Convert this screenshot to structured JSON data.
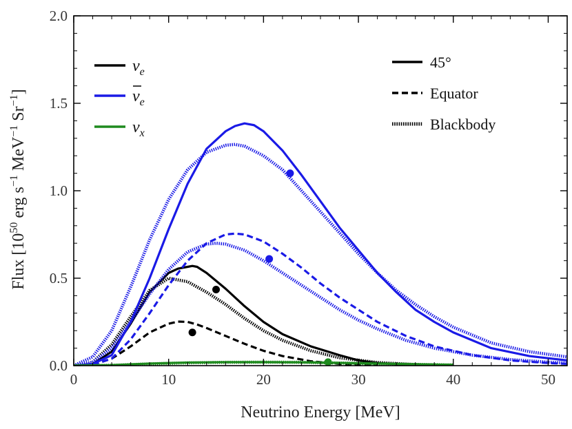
{
  "chart_data": {
    "type": "line",
    "xlabel": "Neutrino Energy [MeV]",
    "ylabel": "Flux [10^50 erg s^-1 MeV^-1 Sr^-1]",
    "ylabel_parts": {
      "a": "Flux [10",
      "b": "50",
      "c": " erg s",
      "d": "−1",
      "e": " MeV",
      "f": "−1",
      "g": " Sr",
      "h": "−1",
      "i": "]"
    },
    "xlim": [
      0,
      52
    ],
    "ylim": [
      0,
      2.0
    ],
    "xticks": [
      0,
      10,
      20,
      30,
      40,
      50
    ],
    "xtick_labels": [
      "0",
      "10",
      "20",
      "30",
      "40",
      "50"
    ],
    "yticks": [
      0,
      0.5,
      1.0,
      1.5,
      2.0
    ],
    "ytick_labels": [
      "0.0",
      "0.5",
      "1.0",
      "1.5",
      "2.0"
    ],
    "colors": {
      "nu_e": "#000000",
      "nubar_e": "#1a1ae6",
      "nu_x": "#1e8a1e"
    },
    "legend_species": [
      {
        "key": "nu_e",
        "sym": "ν",
        "sub": "e",
        "bar": false,
        "color": "#000000"
      },
      {
        "key": "nubar_e",
        "sym": "ν",
        "sub": "e",
        "bar": true,
        "color": "#1a1ae6"
      },
      {
        "key": "nu_x",
        "sym": "ν",
        "sub": "x",
        "bar": false,
        "color": "#1e8a1e"
      }
    ],
    "legend_styles": [
      {
        "style": "solid",
        "label": "45°"
      },
      {
        "style": "dashed",
        "label": "Equator"
      },
      {
        "style": "dotted",
        "label": "Blackbody"
      }
    ],
    "series": [
      {
        "name": "nu_e 45°",
        "species": "nu_e",
        "style": "solid",
        "x": [
          0,
          2,
          4,
          6,
          8,
          10,
          11,
          12,
          12.5,
          13,
          14,
          16,
          18,
          20,
          22,
          25,
          28,
          30,
          32,
          35,
          38
        ],
        "y": [
          0,
          0.01,
          0.08,
          0.24,
          0.42,
          0.53,
          0.555,
          0.565,
          0.57,
          0.565,
          0.53,
          0.44,
          0.34,
          0.25,
          0.18,
          0.11,
          0.06,
          0.03,
          0.015,
          0.005,
          0
        ]
      },
      {
        "name": "nu_e Equator",
        "species": "nu_e",
        "style": "dashed",
        "x": [
          0,
          2,
          4,
          6,
          8,
          10,
          11,
          12,
          13,
          14,
          16,
          18,
          20,
          22,
          25,
          28,
          32
        ],
        "y": [
          0,
          0.005,
          0.04,
          0.11,
          0.19,
          0.24,
          0.252,
          0.25,
          0.235,
          0.215,
          0.17,
          0.125,
          0.085,
          0.055,
          0.025,
          0.01,
          0
        ]
      },
      {
        "name": "nu_e Blackbody",
        "species": "nu_e",
        "style": "dotted",
        "x": [
          0,
          2,
          4,
          6,
          8,
          10,
          12,
          14,
          16,
          18,
          20,
          22,
          25,
          28,
          32,
          36,
          40
        ],
        "y": [
          0,
          0.02,
          0.12,
          0.28,
          0.43,
          0.5,
          0.48,
          0.42,
          0.35,
          0.27,
          0.2,
          0.145,
          0.085,
          0.045,
          0.018,
          0.006,
          0
        ]
      },
      {
        "name": "nubar_e 45°",
        "species": "nubar_e",
        "style": "solid",
        "x": [
          0,
          2,
          4,
          6,
          8,
          10,
          12,
          14,
          16,
          17,
          18,
          19,
          20,
          22,
          24,
          26,
          28,
          30,
          32,
          34,
          36,
          38,
          40,
          44,
          48,
          52
        ],
        "y": [
          0,
          0.01,
          0.06,
          0.25,
          0.5,
          0.78,
          1.04,
          1.24,
          1.34,
          1.37,
          1.385,
          1.375,
          1.34,
          1.23,
          1.09,
          0.94,
          0.79,
          0.66,
          0.53,
          0.42,
          0.32,
          0.25,
          0.19,
          0.1,
          0.055,
          0.03
        ]
      },
      {
        "name": "nubar_e Equator",
        "species": "nubar_e",
        "style": "dashed",
        "x": [
          0,
          2,
          4,
          6,
          8,
          10,
          12,
          14,
          16,
          17,
          18,
          20,
          22,
          24,
          26,
          28,
          30,
          32,
          35,
          38,
          42,
          46,
          50,
          52
        ],
        "y": [
          0,
          0.005,
          0.04,
          0.15,
          0.3,
          0.46,
          0.6,
          0.7,
          0.75,
          0.755,
          0.75,
          0.71,
          0.64,
          0.56,
          0.47,
          0.39,
          0.32,
          0.25,
          0.17,
          0.11,
          0.06,
          0.03,
          0.015,
          0.01
        ]
      },
      {
        "name": "nubar_e Blackbody",
        "species": "nubar_e",
        "style": "dotted",
        "x": [
          0,
          2,
          4,
          6,
          8,
          10,
          12,
          14,
          15,
          16,
          18,
          20,
          22,
          24,
          26,
          28,
          30,
          32,
          35,
          38,
          42,
          46,
          50,
          52
        ],
        "y": [
          0,
          0.02,
          0.1,
          0.25,
          0.41,
          0.55,
          0.65,
          0.695,
          0.7,
          0.695,
          0.66,
          0.6,
          0.53,
          0.46,
          0.39,
          0.32,
          0.26,
          0.21,
          0.145,
          0.1,
          0.06,
          0.035,
          0.02,
          0.015
        ]
      },
      {
        "name": "nubar_e Blackbody (45°)",
        "species": "nubar_e",
        "style": "dotted",
        "x": [
          0,
          2,
          4,
          6,
          8,
          10,
          12,
          14,
          16,
          17,
          18,
          20,
          22,
          24,
          26,
          28,
          30,
          32,
          34,
          36,
          38,
          40,
          44,
          48,
          52
        ],
        "y": [
          0,
          0.05,
          0.2,
          0.45,
          0.72,
          0.95,
          1.12,
          1.22,
          1.26,
          1.265,
          1.255,
          1.2,
          1.12,
          1.0,
          0.88,
          0.76,
          0.64,
          0.53,
          0.43,
          0.35,
          0.28,
          0.22,
          0.13,
          0.08,
          0.05
        ]
      },
      {
        "name": "nu_x 45°",
        "species": "nu_x",
        "style": "solid",
        "x": [
          0,
          4,
          8,
          12,
          16,
          20,
          24,
          28,
          32,
          36,
          40
        ],
        "y": [
          0,
          0.003,
          0.012,
          0.018,
          0.02,
          0.02,
          0.019,
          0.016,
          0.012,
          0.008,
          0.005
        ]
      },
      {
        "name": "nu_x Blackbody",
        "species": "nu_x",
        "style": "dotted",
        "x": [
          0,
          4,
          8,
          12,
          16,
          20,
          24,
          28,
          32,
          36,
          40
        ],
        "y": [
          0,
          0.002,
          0.01,
          0.016,
          0.019,
          0.02,
          0.019,
          0.015,
          0.011,
          0.007,
          0.004
        ]
      }
    ],
    "markers": [
      {
        "species": "nubar_e",
        "x": 22.8,
        "y": 1.1
      },
      {
        "species": "nubar_e",
        "x": 20.6,
        "y": 0.61
      },
      {
        "species": "nu_e",
        "x": 15.0,
        "y": 0.435
      },
      {
        "species": "nu_e",
        "x": 12.5,
        "y": 0.19
      },
      {
        "species": "nu_x",
        "x": 26.8,
        "y": 0.02
      }
    ]
  }
}
